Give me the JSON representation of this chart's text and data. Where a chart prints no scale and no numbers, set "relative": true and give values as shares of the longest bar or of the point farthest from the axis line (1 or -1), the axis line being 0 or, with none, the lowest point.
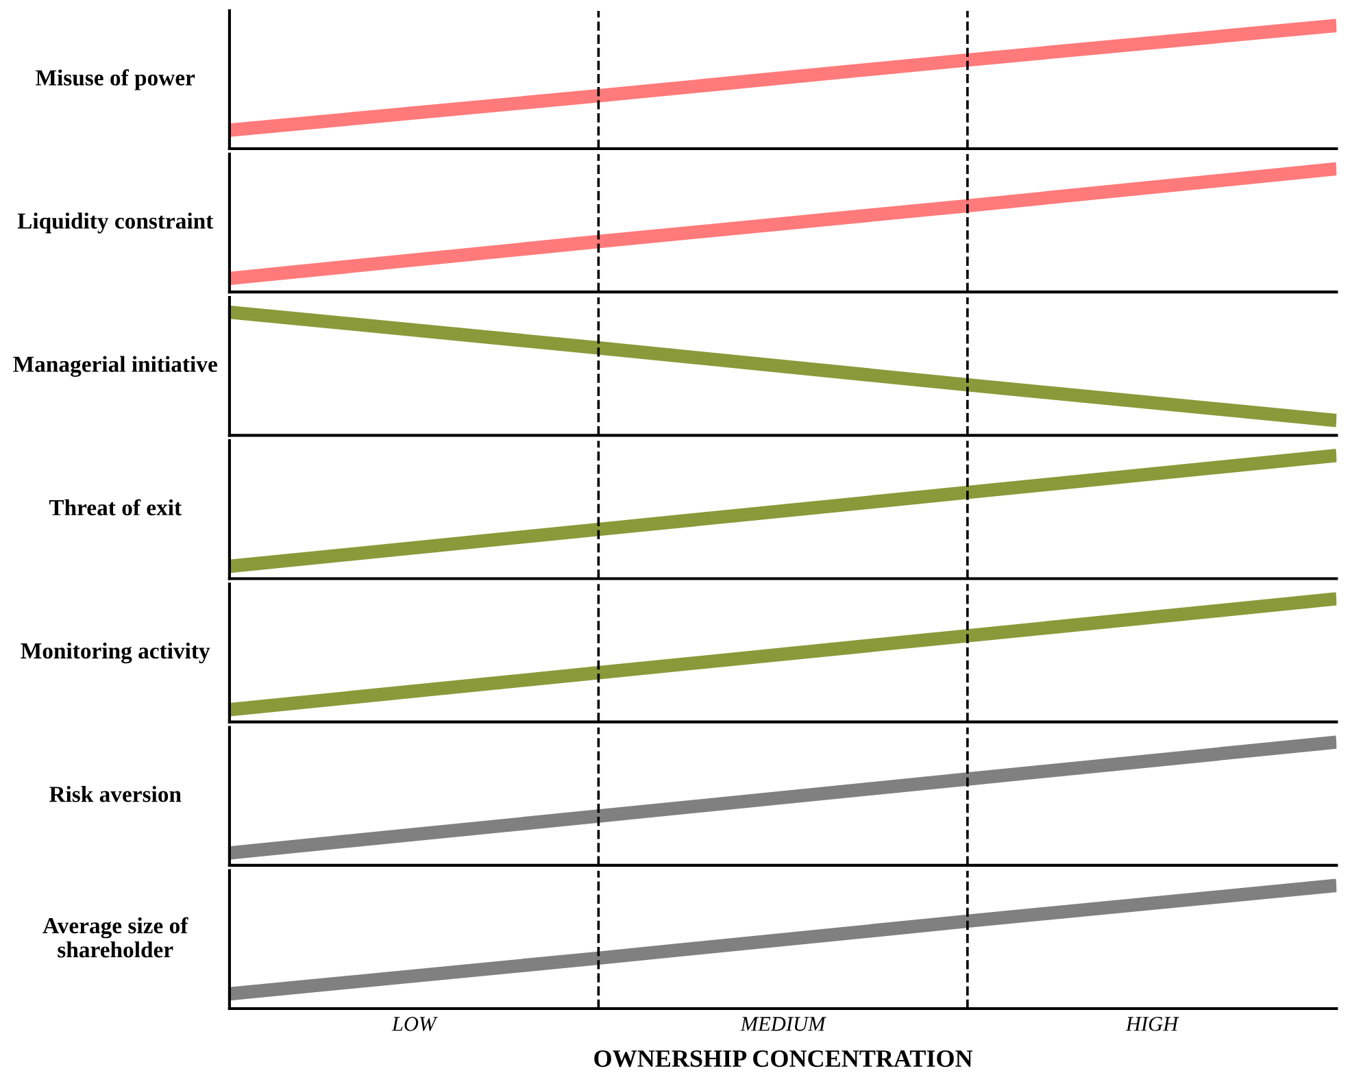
{
  "chart_data": [
    {
      "type": "line",
      "relative": true,
      "ylabel": "Misuse of power",
      "categories": [
        null,
        null,
        null,
        null
      ],
      "grid": "x",
      "series": [
        {
          "color": "#ff7a7a",
          "values": [
            0.15,
            0.43,
            0.72,
            1
          ]
        }
      ]
    },
    {
      "type": "line",
      "relative": true,
      "ylabel": "Liquidity constraint",
      "categories": [
        null,
        null,
        null,
        null
      ],
      "grid": "x",
      "series": [
        {
          "color": "#ff7a7a",
          "values": [
            0.11,
            0.41,
            0.7,
            1
          ]
        }
      ]
    },
    {
      "type": "line",
      "relative": true,
      "ylabel": "Managerial initiative",
      "categories": [
        null,
        null,
        null,
        null
      ],
      "grid": "x",
      "series": [
        {
          "color": "#8a9a3a",
          "values": [
            1,
            0.71,
            0.41,
            0.12
          ]
        }
      ]
    },
    {
      "type": "line",
      "relative": true,
      "ylabel": "Threat of exit",
      "categories": [
        null,
        null,
        null,
        null
      ],
      "grid": "x",
      "series": [
        {
          "color": "#8a9a3a",
          "values": [
            0.1,
            0.4,
            0.7,
            1
          ]
        }
      ]
    },
    {
      "type": "line",
      "relative": true,
      "ylabel": "Monitoring activity",
      "categories": [
        null,
        null,
        null,
        null
      ],
      "grid": "x",
      "series": [
        {
          "color": "#8a9a3a",
          "values": [
            0.1,
            0.4,
            0.7,
            1
          ]
        }
      ]
    },
    {
      "type": "line",
      "relative": true,
      "ylabel": "Risk aversion",
      "categories": [
        null,
        null,
        null,
        null
      ],
      "grid": "x",
      "series": [
        {
          "color": "#808080",
          "values": [
            0.1,
            0.4,
            0.7,
            1
          ]
        }
      ]
    },
    {
      "type": "line",
      "relative": true,
      "ylabel": "Average size of\nshareholder",
      "xlabel": "OWNERSHIP CONCENTRATION",
      "categories": [
        null,
        null,
        null,
        null
      ],
      "grid": "x",
      "annotations": [
        "LOW",
        "MEDIUM",
        "HIGH"
      ],
      "series": [
        {
          "color": "#808080",
          "values": [
            0.12,
            0.41,
            0.71,
            1
          ]
        }
      ]
    }
  ]
}
